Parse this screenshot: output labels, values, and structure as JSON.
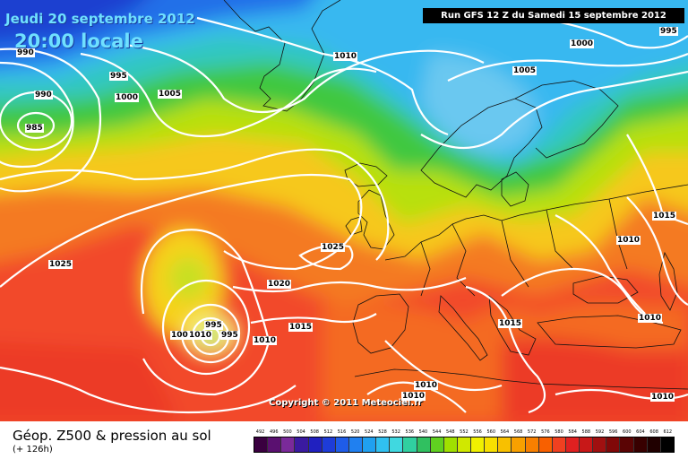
{
  "header": {
    "date": "Jeudi 20 septembre 2012",
    "time": "20:00 locale",
    "run": "Run GFS 12 Z du Samedi 15 septembre 2012"
  },
  "copyright": "Copyright © 2011 Meteociel.fr",
  "footer": {
    "title": "Géop. Z500 & pression au sol",
    "subtitle": "(+ 126h)"
  },
  "isobars": [
    {
      "name": "isobar-label-990-a",
      "text": "990"
    },
    {
      "name": "isobar-label-990-b",
      "text": "990"
    },
    {
      "name": "isobar-label-985",
      "text": "985"
    },
    {
      "name": "isobar-label-995-a",
      "text": "995"
    },
    {
      "name": "isobar-label-1000-a",
      "text": "1000"
    },
    {
      "name": "isobar-label-1005-a",
      "text": "1005"
    },
    {
      "name": "isobar-label-1010-a",
      "text": "1010"
    },
    {
      "name": "isobar-label-1005-b",
      "text": "1005"
    },
    {
      "name": "isobar-label-1000-b",
      "text": "1000"
    },
    {
      "name": "isobar-label-995-b",
      "text": "995"
    },
    {
      "name": "isobar-label-1025-a",
      "text": "1025"
    },
    {
      "name": "isobar-label-1025-b",
      "text": "1025"
    },
    {
      "name": "isobar-label-1020",
      "text": "1020"
    },
    {
      "name": "isobar-label-1015-a",
      "text": "1015"
    },
    {
      "name": "isobar-label-1010-b",
      "text": "1010"
    },
    {
      "name": "isobar-label-1005-c",
      "text": "1005"
    },
    {
      "name": "isobar-label-1010-c",
      "text": "1010"
    },
    {
      "name": "isobar-label-995-c",
      "text": "995"
    },
    {
      "name": "isobar-label-995-d",
      "text": "995"
    },
    {
      "name": "isobar-label-1015-b",
      "text": "1015"
    },
    {
      "name": "isobar-label-1015-c",
      "text": "1015"
    },
    {
      "name": "isobar-label-1010-d",
      "text": "1010"
    },
    {
      "name": "isobar-label-1010-e",
      "text": "1010"
    },
    {
      "name": "isobar-label-1010-f",
      "text": "1010"
    },
    {
      "name": "isobar-label-1010-g",
      "text": "1010"
    },
    {
      "name": "isobar-label-1010-h",
      "text": "1010"
    }
  ],
  "legend": {
    "labels": [
      "492",
      "496",
      "500",
      "504",
      "508",
      "512",
      "516",
      "520",
      "524",
      "528",
      "532",
      "536",
      "540",
      "544",
      "548",
      "552",
      "556",
      "560",
      "564",
      "568",
      "572",
      "576",
      "580",
      "584",
      "588",
      "592",
      "596",
      "600",
      "604",
      "608",
      "612"
    ],
    "colors": [
      "#3a0040",
      "#5a1070",
      "#7a2a9a",
      "#3a1aa0",
      "#2020c0",
      "#1e3cd8",
      "#1f5ce8",
      "#2080f0",
      "#20a0f0",
      "#30c0f0",
      "#40d8e0",
      "#30d0a0",
      "#30c060",
      "#60d020",
      "#a0e000",
      "#d0e800",
      "#f0f000",
      "#f8e000",
      "#f8c000",
      "#f8a000",
      "#f88000",
      "#f86000",
      "#f04020",
      "#e02020",
      "#c81818",
      "#a01010",
      "#800808",
      "#5a0404",
      "#380000",
      "#200000",
      "#000000"
    ]
  }
}
